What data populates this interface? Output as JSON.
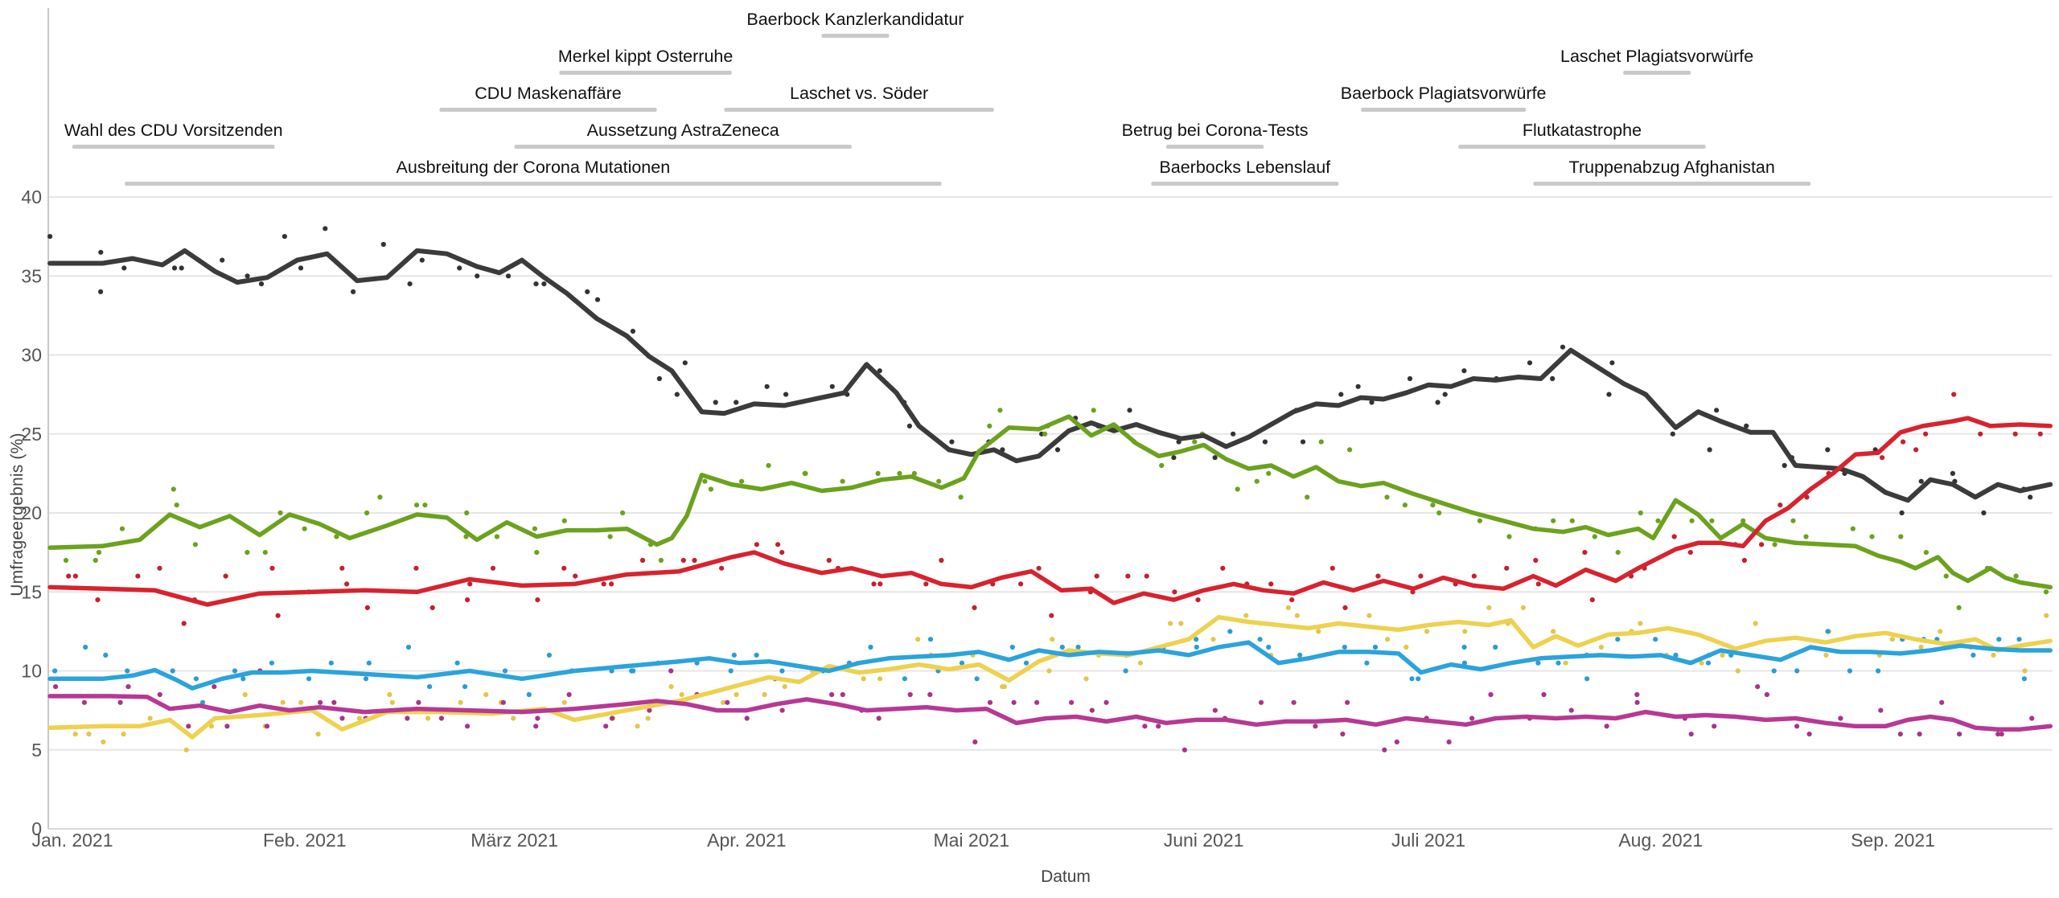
{
  "chart_data": {
    "type": "line",
    "title": "",
    "xlabel": "Datum",
    "ylabel": "Umfrageergebnis (%)",
    "ylim": [
      0,
      40
    ],
    "yticks": [
      0,
      5,
      10,
      15,
      20,
      25,
      30,
      35,
      40
    ],
    "grid": true,
    "legend_position": "none",
    "x_domain_days": [
      -2,
      265
    ],
    "months": [
      {
        "label": "Jan. 2021",
        "day": 1
      },
      {
        "label": "Feb. 2021",
        "day": 32
      },
      {
        "label": "März 2021",
        "day": 60
      },
      {
        "label": "Apr. 2021",
        "day": 91
      },
      {
        "label": "Mai 2021",
        "day": 121
      },
      {
        "label": "Juni 2021",
        "day": 152
      },
      {
        "label": "Juli 2021",
        "day": 182
      },
      {
        "label": "Aug. 2021",
        "day": 213
      },
      {
        "label": "Sep. 2021",
        "day": 244
      }
    ],
    "series": [
      {
        "id": "black-line",
        "color": "#3b3b3b",
        "dot_color": "#333333",
        "width": 6,
        "days": [
          -2,
          5,
          9,
          13,
          16,
          20,
          23,
          27,
          31,
          35,
          39,
          43,
          47,
          51,
          55,
          58,
          61,
          64,
          67,
          71,
          75,
          78,
          81,
          85,
          88,
          92,
          96,
          100,
          104,
          107,
          111,
          114,
          118,
          121,
          124,
          127,
          130,
          134,
          137,
          140,
          143,
          146,
          149,
          152,
          155,
          158,
          161,
          164,
          167,
          170,
          173,
          176,
          179,
          182,
          185,
          188,
          191,
          194,
          197,
          201,
          204,
          208,
          211,
          215,
          218,
          221,
          225,
          228,
          231,
          234,
          237,
          240,
          243,
          246,
          249,
          252,
          255,
          258,
          261,
          265
        ],
        "values": [
          35.8,
          35.8,
          36.1,
          35.7,
          36.6,
          35.3,
          34.6,
          34.9,
          36.0,
          36.4,
          34.7,
          34.9,
          36.6,
          36.4,
          35.6,
          35.2,
          36.0,
          34.9,
          33.9,
          32.3,
          31.2,
          29.9,
          29.0,
          26.4,
          26.3,
          26.9,
          26.8,
          27.2,
          27.6,
          29.4,
          27.6,
          25.5,
          24.0,
          23.7,
          24.0,
          23.3,
          23.6,
          25.2,
          25.7,
          25.2,
          25.6,
          25.1,
          24.7,
          24.9,
          24.2,
          24.8,
          25.6,
          26.4,
          26.9,
          26.8,
          27.3,
          27.2,
          27.6,
          28.1,
          28.0,
          28.5,
          28.4,
          28.6,
          28.5,
          30.3,
          29.4,
          28.2,
          27.5,
          25.4,
          26.4,
          25.8,
          25.1,
          25.1,
          23.0,
          22.9,
          22.8,
          22.3,
          21.3,
          20.8,
          22.1,
          21.8,
          21.0,
          21.8,
          21.4,
          21.8
        ]
      },
      {
        "id": "green-line",
        "color": "#6ba21e",
        "dot_color": "#6ba21e",
        "width": 5.5,
        "days": [
          -2,
          5,
          10,
          14,
          18,
          22,
          26,
          30,
          34,
          38,
          43,
          47,
          51,
          55,
          59,
          63,
          67,
          71,
          75,
          79,
          81,
          83,
          85,
          89,
          93,
          97,
          101,
          105,
          109,
          113,
          117,
          120,
          122,
          126,
          130,
          134,
          137,
          140,
          143,
          146,
          149,
          152,
          155,
          158,
          161,
          164,
          167,
          170,
          173,
          176,
          180,
          184,
          188,
          192,
          196,
          200,
          203,
          206,
          210,
          212,
          215,
          218,
          221,
          224,
          227,
          231,
          235,
          239,
          242,
          245,
          247,
          250,
          252,
          254,
          257,
          259,
          261,
          265
        ],
        "values": [
          17.8,
          17.9,
          18.3,
          19.9,
          19.1,
          19.8,
          18.6,
          19.9,
          19.3,
          18.4,
          19.2,
          19.9,
          19.7,
          18.3,
          19.4,
          18.5,
          18.9,
          18.9,
          19.0,
          18.0,
          18.4,
          19.8,
          22.4,
          21.8,
          21.5,
          21.9,
          21.4,
          21.6,
          22.1,
          22.3,
          21.6,
          22.2,
          23.9,
          25.4,
          25.3,
          26.1,
          24.9,
          25.6,
          24.4,
          23.6,
          23.9,
          24.3,
          23.4,
          22.8,
          23.0,
          22.3,
          22.9,
          22.0,
          21.7,
          21.9,
          21.2,
          20.6,
          20.0,
          19.5,
          19.0,
          18.8,
          19.1,
          18.6,
          19.0,
          18.4,
          20.8,
          19.9,
          18.4,
          19.3,
          18.4,
          18.1,
          18.0,
          17.9,
          17.3,
          16.9,
          16.5,
          17.2,
          16.2,
          15.7,
          16.5,
          15.9,
          15.6,
          15.3
        ]
      },
      {
        "id": "red-line",
        "color": "#d7232e",
        "dot_color": "#c42031",
        "width": 5.5,
        "days": [
          -2,
          5,
          12,
          19,
          26,
          33,
          40,
          47,
          54,
          61,
          68,
          75,
          82,
          89,
          92,
          96,
          101,
          105,
          109,
          113,
          117,
          121,
          125,
          129,
          133,
          137,
          140,
          144,
          148,
          152,
          156,
          160,
          164,
          168,
          172,
          176,
          180,
          184,
          188,
          192,
          196,
          199,
          203,
          207,
          210,
          215,
          218,
          221,
          224,
          227,
          230,
          233,
          236,
          239,
          242,
          245,
          248,
          252,
          254,
          257,
          261,
          265
        ],
        "values": [
          15.3,
          15.2,
          15.1,
          14.2,
          14.9,
          15.0,
          15.1,
          15.0,
          15.8,
          15.4,
          15.5,
          16.1,
          16.3,
          17.2,
          17.5,
          16.8,
          16.2,
          16.5,
          16.0,
          16.2,
          15.5,
          15.3,
          15.9,
          16.3,
          15.1,
          15.2,
          14.3,
          14.9,
          14.5,
          15.1,
          15.5,
          15.1,
          14.9,
          15.6,
          15.1,
          15.7,
          15.2,
          15.9,
          15.4,
          15.2,
          16.0,
          15.4,
          16.4,
          15.7,
          16.5,
          17.7,
          18.1,
          18.1,
          17.9,
          19.5,
          20.3,
          21.5,
          22.5,
          23.7,
          23.8,
          25.1,
          25.5,
          25.8,
          26.0,
          25.5,
          25.6,
          25.5
        ]
      },
      {
        "id": "yellow-line",
        "color": "#eed14f",
        "dot_color": "#e3c64a",
        "width": 5.5,
        "days": [
          -2,
          5,
          10,
          14,
          17,
          20,
          26,
          33,
          37,
          43,
          50,
          57,
          64,
          68,
          75,
          82,
          86,
          90,
          94,
          98,
          102,
          106,
          110,
          114,
          118,
          122,
          126,
          130,
          134,
          138,
          142,
          146,
          150,
          154,
          158,
          162,
          166,
          170,
          174,
          178,
          182,
          186,
          190,
          193,
          196,
          199,
          202,
          206,
          210,
          214,
          218,
          223,
          227,
          231,
          235,
          239,
          243,
          247,
          251,
          255,
          258,
          261,
          265
        ],
        "values": [
          6.4,
          6.5,
          6.5,
          6.9,
          5.8,
          7.0,
          7.2,
          7.5,
          6.3,
          7.4,
          7.4,
          7.3,
          7.6,
          6.9,
          7.5,
          8.1,
          8.6,
          9.1,
          9.6,
          9.3,
          10.3,
          9.9,
          10.1,
          10.4,
          10.1,
          10.4,
          9.4,
          10.6,
          11.3,
          11.1,
          11.0,
          11.5,
          12.0,
          13.4,
          13.1,
          12.9,
          12.7,
          13.0,
          12.8,
          12.6,
          12.9,
          13.1,
          12.9,
          13.2,
          11.5,
          12.2,
          11.6,
          12.3,
          12.4,
          12.7,
          12.3,
          11.4,
          11.9,
          12.1,
          11.8,
          12.2,
          12.4,
          12.0,
          11.7,
          12.0,
          11.3,
          11.6,
          11.9
        ]
      },
      {
        "id": "blue-line",
        "color": "#2ba3db",
        "dot_color": "#2b9cd3",
        "width": 5.5,
        "days": [
          -2,
          5,
          9,
          12,
          15,
          17,
          21,
          25,
          29,
          33,
          40,
          47,
          54,
          61,
          68,
          75,
          82,
          86,
          90,
          94,
          98,
          102,
          106,
          110,
          114,
          118,
          122,
          126,
          130,
          134,
          138,
          142,
          146,
          150,
          154,
          158,
          162,
          166,
          170,
          174,
          178,
          181,
          185,
          189,
          193,
          197,
          201,
          205,
          209,
          213,
          217,
          221,
          225,
          229,
          233,
          237,
          241,
          245,
          249,
          253,
          257,
          261,
          265
        ],
        "values": [
          9.5,
          9.5,
          9.7,
          10.05,
          9.4,
          8.9,
          9.5,
          9.9,
          9.9,
          10.0,
          9.8,
          9.6,
          10.0,
          9.5,
          10.0,
          10.3,
          10.6,
          10.8,
          10.5,
          10.6,
          10.3,
          10.0,
          10.5,
          10.8,
          10.9,
          11.0,
          11.2,
          10.7,
          11.3,
          11.0,
          11.2,
          11.1,
          11.3,
          11.0,
          11.5,
          11.8,
          10.5,
          10.8,
          11.2,
          11.2,
          11.1,
          9.9,
          10.4,
          10.1,
          10.5,
          10.8,
          10.9,
          11.0,
          10.9,
          11.0,
          10.5,
          11.3,
          11.0,
          10.7,
          11.5,
          11.2,
          11.2,
          11.1,
          11.3,
          11.6,
          11.4,
          11.3,
          11.3
        ]
      },
      {
        "id": "magenta-line",
        "color": "#b73895",
        "dot_color": "#a93389",
        "width": 5.5,
        "days": [
          -2,
          6,
          11,
          14,
          18,
          22,
          26,
          30,
          34,
          40,
          47,
          54,
          61,
          68,
          75,
          79,
          83,
          87,
          91,
          95,
          99,
          103,
          107,
          111,
          115,
          119,
          123,
          127,
          131,
          135,
          139,
          143,
          147,
          151,
          155,
          159,
          163,
          167,
          171,
          175,
          179,
          183,
          187,
          191,
          195,
          199,
          203,
          207,
          211,
          215,
          219,
          223,
          227,
          231,
          235,
          239,
          243,
          246,
          249,
          252,
          255,
          258,
          261,
          265
        ],
        "values": [
          8.4,
          8.4,
          8.35,
          7.6,
          7.8,
          7.4,
          7.8,
          7.5,
          7.7,
          7.4,
          7.6,
          7.5,
          7.4,
          7.6,
          7.9,
          8.1,
          7.9,
          7.5,
          7.5,
          7.9,
          8.2,
          7.9,
          7.5,
          7.6,
          7.7,
          7.5,
          7.6,
          6.7,
          7.0,
          7.1,
          6.8,
          7.1,
          6.7,
          6.9,
          6.9,
          6.6,
          6.8,
          6.8,
          6.9,
          6.6,
          7.0,
          6.8,
          6.6,
          7.0,
          7.1,
          7.0,
          7.1,
          7.0,
          7.4,
          7.1,
          7.2,
          7.1,
          6.9,
          7.0,
          6.7,
          6.5,
          6.5,
          6.9,
          7.1,
          6.9,
          6.4,
          6.3,
          6.3,
          6.5
        ]
      }
    ],
    "annotations": [
      {
        "label": "Baerbock Kanzlerkandidatur",
        "row": 0,
        "start_day": 101,
        "end_day": 110
      },
      {
        "label": "Merkel kippt Osterruhe",
        "row": 1,
        "start_day": 66,
        "end_day": 89
      },
      {
        "label": "Laschet Plagiatsvorwürfe",
        "row": 1,
        "start_day": 208,
        "end_day": 217
      },
      {
        "label": "CDU Maskenaffäre",
        "row": 2,
        "start_day": 50,
        "end_day": 79
      },
      {
        "label": "Laschet vs. Söder",
        "row": 2,
        "start_day": 88,
        "end_day": 124
      },
      {
        "label": "Baerbock Plagiatsvorwürfe",
        "row": 2,
        "start_day": 173,
        "end_day": 195
      },
      {
        "label": "Wahl des CDU Vorsitzenden",
        "row": 3,
        "start_day": 1,
        "end_day": 28
      },
      {
        "label": "Aussetzung AstraZeneca",
        "row": 3,
        "start_day": 60,
        "end_day": 105
      },
      {
        "label": "Betrug bei Corona-Tests",
        "row": 3,
        "start_day": 147,
        "end_day": 160
      },
      {
        "label": "Flutkatastrophe",
        "row": 3,
        "start_day": 186,
        "end_day": 219
      },
      {
        "label": "Ausbreitung der Corona Mutationen",
        "row": 4,
        "start_day": 8,
        "end_day": 117
      },
      {
        "label": "Baerbocks Lebenslauf",
        "row": 4,
        "start_day": 145,
        "end_day": 170
      },
      {
        "label": "Truppenabzug Afghanistan",
        "row": 4,
        "start_day": 196,
        "end_day": 233
      }
    ],
    "annotation_bar_color": "#c9c9c9",
    "annotation_text_color": "#111111",
    "grid_color": "#e6e6e6",
    "baseline_color": "#d9d9d9",
    "spine_color": "#c8c8c8",
    "tick_text_color": "#555555"
  }
}
